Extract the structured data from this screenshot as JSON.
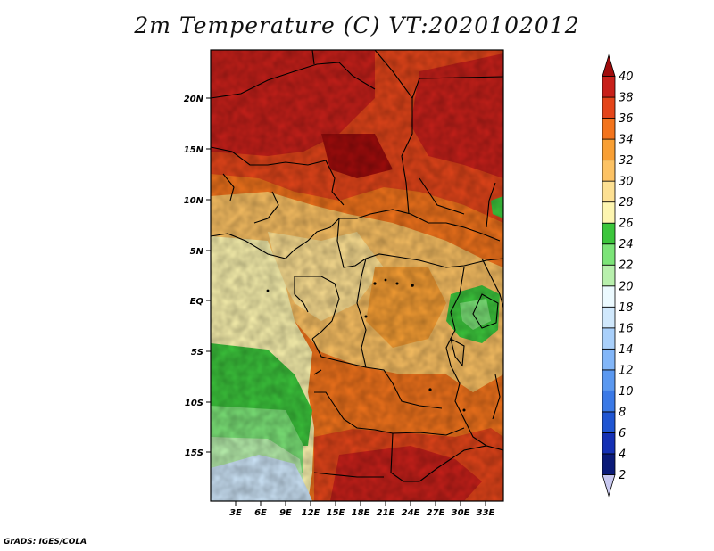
{
  "title": "2m Temperature (C) VT:2020102012",
  "credit": "GrADS: IGES/COLA",
  "map": {
    "lat_ticks": [
      "20N",
      "15N",
      "10N",
      "5N",
      "EQ",
      "5S",
      "10S",
      "15S"
    ],
    "lon_ticks": [
      "3E",
      "6E",
      "9E",
      "12E",
      "15E",
      "18E",
      "21E",
      "24E",
      "27E",
      "30E",
      "33E"
    ]
  },
  "colorbar": {
    "labels": [
      "2",
      "4",
      "6",
      "8",
      "10",
      "12",
      "14",
      "16",
      "18",
      "20",
      "22",
      "24",
      "26",
      "28",
      "30",
      "32",
      "34",
      "36",
      "38",
      "40"
    ],
    "colors": [
      "#c8c8f0",
      "#0a1a78",
      "#1430b4",
      "#1f55d2",
      "#3a79e6",
      "#5a98f0",
      "#82b6f8",
      "#a9d0fb",
      "#d0e8fc",
      "#ecfaff",
      "#b8f0ad",
      "#7ce478",
      "#3cc63c",
      "#fdf5b0",
      "#fde092",
      "#fcc264",
      "#f89f34",
      "#f3741c",
      "#e4451a",
      "#c8201a",
      "#a00c0c"
    ]
  }
}
